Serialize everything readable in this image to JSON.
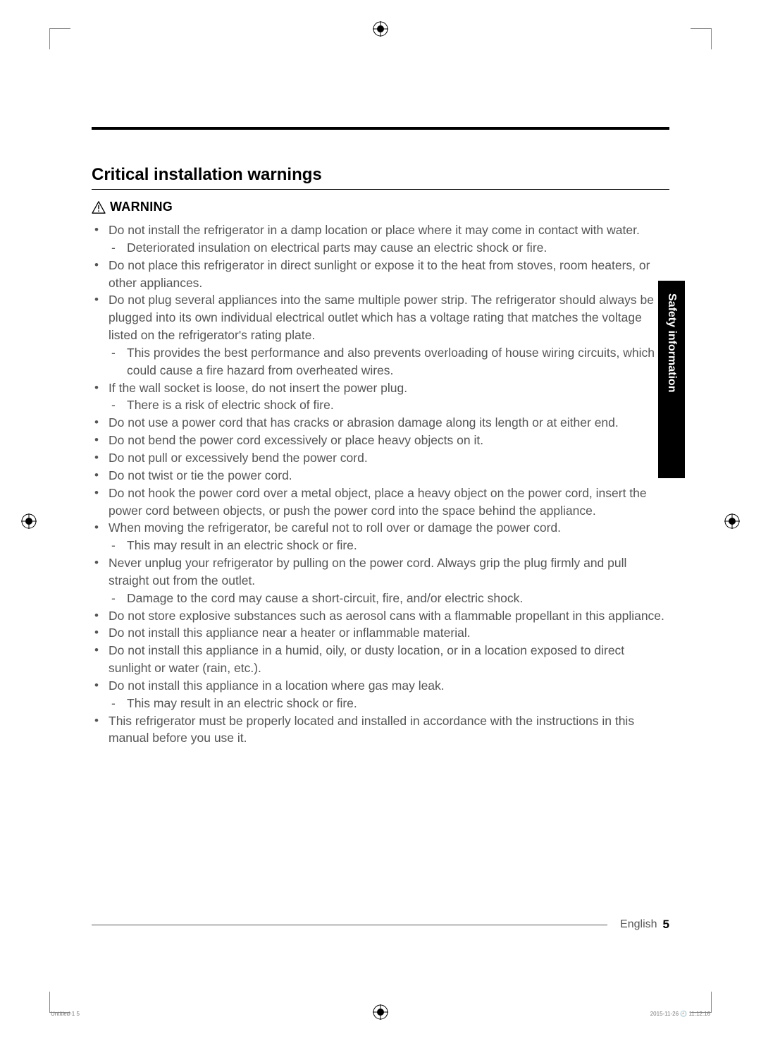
{
  "section_title": "Critical installation warnings",
  "warning_label": "WARNING",
  "side_tab": "Safety information",
  "bullets": [
    {
      "text": "Do not install the refrigerator in a damp location or place where it may come in contact with water.",
      "sub": [
        "Deteriorated insulation on electrical parts may cause an electric shock or fire."
      ]
    },
    {
      "text": "Do not place this refrigerator in direct sunlight or expose it to the heat from stoves, room heaters, or other appliances."
    },
    {
      "text": "Do not plug several appliances into the same multiple power strip. The refrigerator should always be plugged into its own individual electrical outlet which has a voltage rating that matches the voltage listed on the refrigerator's rating plate.",
      "sub": [
        "This provides the best performance and also prevents overloading of house wiring circuits, which could cause a fire hazard from overheated wires."
      ]
    },
    {
      "text": "If the wall socket is loose, do not insert the power plug.",
      "sub": [
        "There is a risk of electric shock of fire."
      ]
    },
    {
      "text": "Do not use a power cord that has cracks or abrasion damage along its length or at either end."
    },
    {
      "text": "Do not bend the power cord excessively or place heavy objects on it."
    },
    {
      "text": "Do not pull or excessively bend the power cord."
    },
    {
      "text": "Do not twist or tie the power cord."
    },
    {
      "text": "Do not hook the power cord over a metal object, place a heavy object on the power cord, insert the power cord between objects, or push the power cord into the space behind the appliance."
    },
    {
      "text": "When moving the refrigerator, be careful not to roll over or damage the power cord.",
      "sub": [
        "This may result in an electric shock or fire."
      ]
    },
    {
      "text": "Never unplug your refrigerator by pulling on the power cord. Always grip the plug firmly and pull straight out from the outlet.",
      "sub": [
        "Damage to the cord may cause a short-circuit, fire, and/or electric shock."
      ]
    },
    {
      "text": "Do not store explosive substances such as aerosol cans with a flammable propellant in this appliance."
    },
    {
      "text": "Do not install this appliance near a heater or inflammable material."
    },
    {
      "text": "Do not install this appliance in a humid, oily, or dusty location, or in a location exposed to direct sunlight or water (rain, etc.)."
    },
    {
      "text": "Do not install this appliance in a location where gas may leak.",
      "sub": [
        "This may result in an electric shock or fire."
      ]
    },
    {
      "text": "This refrigerator must be properly located and installed in accordance with the instructions in this manual before you use it."
    }
  ],
  "footer_lang": "English",
  "footer_page": "5",
  "print_left": "Untitled-1   5",
  "print_right": "2015-11-26   🕘 11:12:16"
}
